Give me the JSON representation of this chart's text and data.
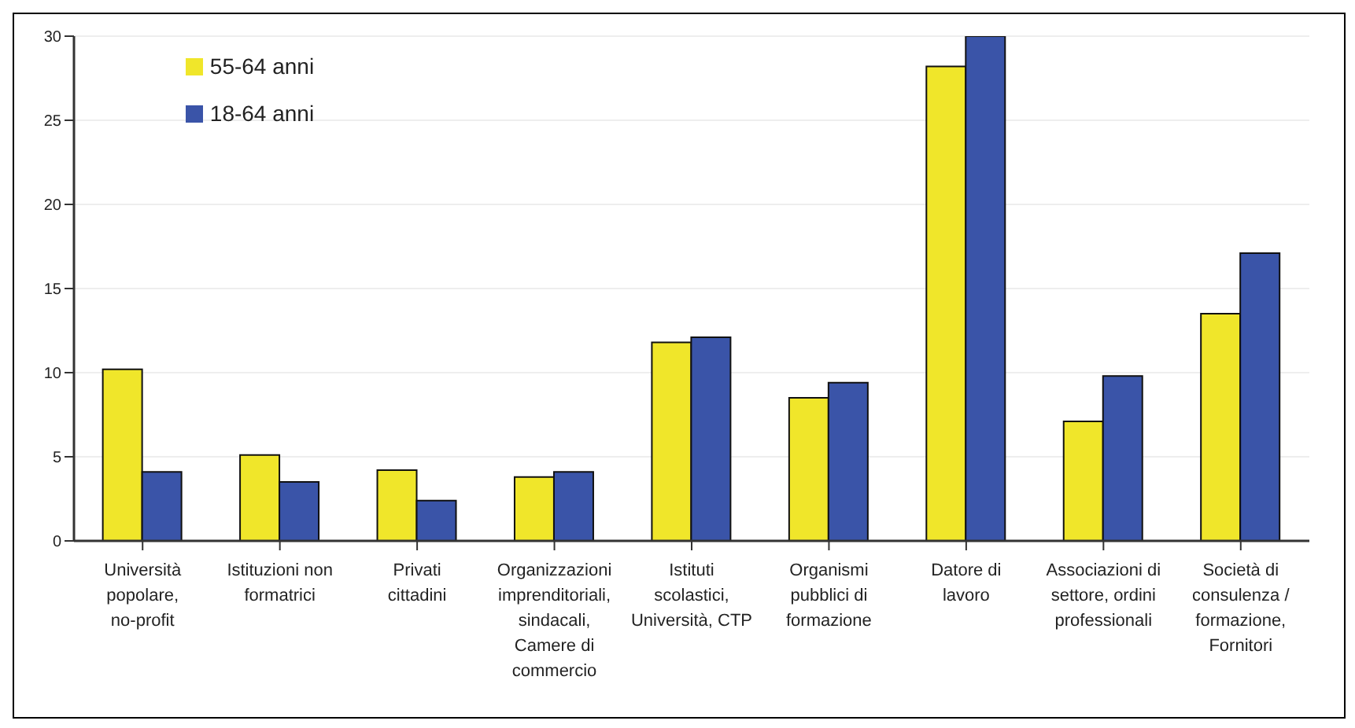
{
  "chart_data": {
    "type": "bar",
    "categories": [
      "Università popolare, no-profit",
      "Istituzioni non formatrici",
      "Privati cittadini",
      "Organizzazioni imprenditoriali, sindacali, Camere di commercio",
      "Istituti scolastici, Università, CTP",
      "Organismi pubblici di formazione",
      "Datore di lavoro",
      "Associazioni di settore, ordini professionali",
      "Società di consulenza / formazione, Fornitori"
    ],
    "series": [
      {
        "name": "55-64 anni",
        "color": "#f0e62a",
        "values": [
          10.2,
          5.1,
          4.2,
          3.8,
          11.8,
          8.5,
          28.2,
          7.1,
          13.5
        ]
      },
      {
        "name": "18-64 anni",
        "color": "#3a54a8",
        "values": [
          4.1,
          3.5,
          2.4,
          4.1,
          12.1,
          9.4,
          30.0,
          9.8,
          17.1
        ]
      }
    ],
    "ylim": [
      0,
      30
    ],
    "yticks": [
      0,
      5,
      10,
      15,
      20,
      25,
      30
    ],
    "grid": "y",
    "legend": "top left"
  }
}
